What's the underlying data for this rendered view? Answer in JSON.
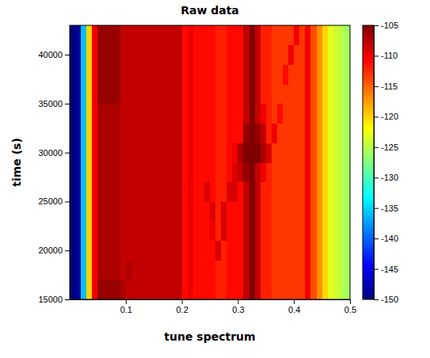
{
  "chart_data": {
    "type": "heatmap",
    "title": "Raw data",
    "xlabel": "tune spectrum",
    "ylabel": "time (s)",
    "xlim": [
      0,
      0.5
    ],
    "ylim": [
      15000,
      43000
    ],
    "xticks": [
      0.1,
      0.2,
      0.3,
      0.4,
      0.5
    ],
    "yticks": [
      15000,
      20000,
      25000,
      30000,
      35000,
      40000
    ],
    "xbins": [
      0,
      0.01,
      0.02,
      0.03,
      0.04,
      0.05,
      0.06,
      0.07,
      0.08,
      0.09,
      0.1,
      0.11,
      0.12,
      0.13,
      0.14,
      0.15,
      0.16,
      0.17,
      0.18,
      0.19,
      0.2,
      0.21,
      0.22,
      0.23,
      0.24,
      0.25,
      0.26,
      0.27,
      0.28,
      0.29,
      0.3,
      0.31,
      0.32,
      0.33,
      0.34,
      0.35,
      0.36,
      0.37,
      0.38,
      0.39,
      0.4,
      0.41,
      0.42,
      0.43,
      0.44,
      0.45,
      0.46,
      0.47,
      0.48,
      0.49,
      0.5
    ],
    "ybins": [
      15000,
      17000,
      19000,
      21000,
      23000,
      25000,
      27000,
      29000,
      31000,
      33000,
      35000,
      37000,
      39000,
      41000,
      43000
    ],
    "cells": [
      [
        -150,
        -149,
        -136,
        -120,
        -110,
        -106,
        -106,
        -106,
        -106,
        -107,
        -108,
        -108,
        -108,
        -108,
        -108,
        -108,
        -108,
        -108,
        -108,
        -108,
        -111,
        -110,
        -111,
        -111,
        -111,
        -111,
        -112,
        -112,
        -111,
        -111,
        -111,
        -108,
        -105,
        -108,
        -112,
        -112,
        -113,
        -113,
        -113,
        -113,
        -113,
        -113,
        -110,
        -114,
        -117,
        -120,
        -123,
        -124,
        -125,
        -126
      ],
      [
        -150,
        -149,
        -136,
        -120,
        -110,
        -107,
        -107,
        -107,
        -107,
        -108,
        -107,
        -108,
        -108,
        -108,
        -108,
        -108,
        -108,
        -108,
        -108,
        -108,
        -111,
        -110,
        -111,
        -111,
        -111,
        -111,
        -112,
        -112,
        -111,
        -111,
        -111,
        -108,
        -105,
        -108,
        -112,
        -112,
        -113,
        -113,
        -113,
        -113,
        -113,
        -113,
        -110,
        -114,
        -117,
        -120,
        -123,
        -124,
        -125,
        -126
      ],
      [
        -150,
        -149,
        -136,
        -120,
        -110,
        -107,
        -107,
        -107,
        -107,
        -108,
        -108,
        -108,
        -108,
        -108,
        -108,
        -108,
        -108,
        -108,
        -108,
        -108,
        -111,
        -110,
        -111,
        -111,
        -111,
        -111,
        -109,
        -112,
        -111,
        -111,
        -111,
        -108,
        -105,
        -108,
        -112,
        -112,
        -113,
        -113,
        -113,
        -113,
        -113,
        -113,
        -110,
        -114,
        -117,
        -120,
        -123,
        -124,
        -125,
        -126
      ],
      [
        -150,
        -149,
        -136,
        -120,
        -110,
        -107,
        -107,
        -107,
        -107,
        -108,
        -108,
        -108,
        -108,
        -108,
        -108,
        -108,
        -108,
        -108,
        -108,
        -108,
        -111,
        -110,
        -111,
        -111,
        -111,
        -110,
        -112,
        -109,
        -111,
        -111,
        -111,
        -108,
        -105,
        -108,
        -112,
        -112,
        -113,
        -113,
        -113,
        -113,
        -113,
        -113,
        -110,
        -114,
        -117,
        -120,
        -123,
        -124,
        -125,
        -126
      ],
      [
        -150,
        -149,
        -136,
        -120,
        -110,
        -107,
        -107,
        -107,
        -107,
        -108,
        -108,
        -108,
        -108,
        -108,
        -108,
        -108,
        -108,
        -108,
        -108,
        -108,
        -111,
        -110,
        -111,
        -111,
        -111,
        -109,
        -112,
        -109,
        -111,
        -111,
        -111,
        -108,
        -105,
        -108,
        -112,
        -112,
        -113,
        -113,
        -113,
        -113,
        -113,
        -113,
        -110,
        -114,
        -117,
        -120,
        -123,
        -124,
        -125,
        -126
      ],
      [
        -150,
        -149,
        -136,
        -120,
        -110,
        -107,
        -107,
        -107,
        -107,
        -108,
        -108,
        -108,
        -108,
        -108,
        -108,
        -108,
        -108,
        -108,
        -108,
        -108,
        -111,
        -110,
        -111,
        -111,
        -109,
        -111,
        -112,
        -112,
        -109,
        -109,
        -111,
        -108,
        -105,
        -108,
        -112,
        -112,
        -113,
        -113,
        -113,
        -113,
        -113,
        -113,
        -110,
        -114,
        -117,
        -120,
        -123,
        -124,
        -125,
        -126
      ],
      [
        -150,
        -149,
        -136,
        -120,
        -110,
        -107,
        -107,
        -107,
        -107,
        -108,
        -108,
        -108,
        -108,
        -108,
        -108,
        -108,
        -108,
        -108,
        -108,
        -108,
        -111,
        -110,
        -111,
        -111,
        -111,
        -111,
        -112,
        -112,
        -111,
        -109,
        -108,
        -106,
        -105,
        -108,
        -110,
        -112,
        -113,
        -113,
        -113,
        -113,
        -113,
        -113,
        -110,
        -114,
        -117,
        -120,
        -123,
        -124,
        -125,
        -126
      ],
      [
        -150,
        -149,
        -136,
        -120,
        -110,
        -107,
        -107,
        -107,
        -107,
        -108,
        -108,
        -108,
        -108,
        -108,
        -108,
        -108,
        -108,
        -108,
        -108,
        -108,
        -111,
        -110,
        -111,
        -111,
        -111,
        -111,
        -112,
        -112,
        -111,
        -110,
        -107,
        -105,
        -105,
        -105,
        -107,
        -109,
        -113,
        -113,
        -113,
        -113,
        -113,
        -113,
        -110,
        -114,
        -117,
        -120,
        -123,
        -124,
        -125,
        -126
      ],
      [
        -150,
        -149,
        -136,
        -120,
        -110,
        -107,
        -107,
        -107,
        -107,
        -108,
        -108,
        -108,
        -108,
        -108,
        -108,
        -108,
        -108,
        -108,
        -108,
        -108,
        -111,
        -110,
        -111,
        -111,
        -111,
        -111,
        -112,
        -112,
        -111,
        -111,
        -111,
        -106,
        -105,
        -106,
        -108,
        -112,
        -110,
        -113,
        -113,
        -113,
        -113,
        -113,
        -110,
        -114,
        -117,
        -120,
        -123,
        -124,
        -125,
        -126
      ],
      [
        -150,
        -149,
        -136,
        -120,
        -110,
        -107,
        -107,
        -107,
        -107,
        -108,
        -108,
        -108,
        -108,
        -108,
        -108,
        -108,
        -108,
        -108,
        -108,
        -108,
        -111,
        -110,
        -111,
        -111,
        -111,
        -111,
        -112,
        -112,
        -111,
        -111,
        -111,
        -108,
        -105,
        -108,
        -110,
        -112,
        -113,
        -111,
        -113,
        -113,
        -113,
        -113,
        -110,
        -114,
        -117,
        -120,
        -123,
        -124,
        -125,
        -126
      ],
      [
        -150,
        -149,
        -136,
        -120,
        -110,
        -106,
        -106,
        -106,
        -106,
        -108,
        -108,
        -108,
        -108,
        -108,
        -108,
        -108,
        -108,
        -108,
        -108,
        -108,
        -111,
        -110,
        -111,
        -111,
        -111,
        -111,
        -112,
        -112,
        -111,
        -111,
        -111,
        -108,
        -105,
        -108,
        -112,
        -112,
        -113,
        -113,
        -113,
        -113,
        -113,
        -113,
        -110,
        -114,
        -117,
        -120,
        -123,
        -124,
        -125,
        -126
      ],
      [
        -150,
        -149,
        -136,
        -120,
        -110,
        -106,
        -106,
        -106,
        -106,
        -108,
        -108,
        -108,
        -108,
        -108,
        -108,
        -108,
        -108,
        -108,
        -108,
        -108,
        -111,
        -110,
        -111,
        -111,
        -111,
        -111,
        -112,
        -112,
        -111,
        -111,
        -111,
        -108,
        -105,
        -108,
        -112,
        -112,
        -113,
        -113,
        -111,
        -113,
        -113,
        -113,
        -110,
        -114,
        -117,
        -120,
        -123,
        -124,
        -125,
        -126
      ],
      [
        -150,
        -149,
        -136,
        -120,
        -110,
        -106,
        -106,
        -106,
        -106,
        -108,
        -108,
        -108,
        -108,
        -108,
        -108,
        -108,
        -108,
        -108,
        -108,
        -108,
        -111,
        -110,
        -111,
        -111,
        -111,
        -111,
        -112,
        -112,
        -111,
        -111,
        -111,
        -108,
        -105,
        -108,
        -112,
        -112,
        -113,
        -113,
        -113,
        -110,
        -113,
        -113,
        -110,
        -114,
        -117,
        -120,
        -123,
        -124,
        -125,
        -126
      ],
      [
        -150,
        -149,
        -136,
        -120,
        -110,
        -106,
        -106,
        -106,
        -106,
        -108,
        -108,
        -108,
        -108,
        -108,
        -108,
        -108,
        -108,
        -108,
        -108,
        -108,
        -111,
        -110,
        -111,
        -111,
        -111,
        -111,
        -112,
        -112,
        -111,
        -111,
        -111,
        -108,
        -105,
        -108,
        -112,
        -112,
        -113,
        -113,
        -113,
        -113,
        -110,
        -113,
        -110,
        -114,
        -117,
        -120,
        -123,
        -124,
        -125,
        -126
      ]
    ],
    "colorbar": {
      "range": [
        -150,
        -105
      ],
      "ticks": [
        -150,
        -145,
        -140,
        -135,
        -130,
        -125,
        -120,
        -115,
        -110,
        -105
      ]
    }
  }
}
